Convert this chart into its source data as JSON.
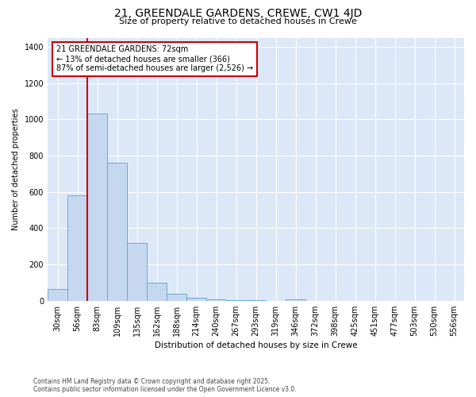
{
  "title1": "21, GREENDALE GARDENS, CREWE, CW1 4JD",
  "title2": "Size of property relative to detached houses in Crewe",
  "xlabel": "Distribution of detached houses by size in Crewe",
  "ylabel": "Number of detached properties",
  "categories": [
    "30sqm",
    "56sqm",
    "83sqm",
    "109sqm",
    "135sqm",
    "162sqm",
    "188sqm",
    "214sqm",
    "240sqm",
    "267sqm",
    "293sqm",
    "319sqm",
    "346sqm",
    "372sqm",
    "398sqm",
    "425sqm",
    "451sqm",
    "477sqm",
    "503sqm",
    "530sqm",
    "556sqm"
  ],
  "values": [
    65,
    580,
    1030,
    760,
    320,
    100,
    40,
    18,
    10,
    5,
    3,
    0,
    8,
    0,
    0,
    0,
    0,
    0,
    0,
    0,
    0
  ],
  "bar_color": "#c5d8f0",
  "bar_edge_color": "#6aaad4",
  "vline_x": 1.5,
  "vline_color": "#cc0000",
  "annotation_title": "21 GREENDALE GARDENS: 72sqm",
  "annotation_line1": "← 13% of detached houses are smaller (366)",
  "annotation_line2": "87% of semi-detached houses are larger (2,526) →",
  "annotation_box_color": "#ffffff",
  "annotation_box_edge": "#cc0000",
  "ylim": [
    0,
    1450
  ],
  "background_color": "#dce8f8",
  "footer1": "Contains HM Land Registry data © Crown copyright and database right 2025.",
  "footer2": "Contains public sector information licensed under the Open Government Licence v3.0."
}
